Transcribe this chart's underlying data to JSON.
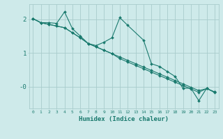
{
  "background_color": "#ceeaea",
  "grid_color": "#a8cccc",
  "line_color": "#1a7a6e",
  "marker_color": "#1a7a6e",
  "xlabel": "Humidex (Indice chaleur)",
  "x_ticks": [
    0,
    1,
    2,
    3,
    4,
    5,
    6,
    7,
    8,
    9,
    10,
    11,
    12,
    13,
    14,
    15,
    16,
    17,
    18,
    19,
    20,
    21,
    22,
    23
  ],
  "ylim": [
    -0.65,
    2.45
  ],
  "xlim": [
    -0.5,
    23.5
  ],
  "series1_x": [
    0,
    1,
    2,
    3,
    4,
    5,
    6,
    7,
    8,
    9,
    10,
    11,
    12,
    14,
    15,
    16,
    17,
    18,
    19,
    20,
    21,
    22,
    23
  ],
  "series1_y": [
    2.02,
    1.9,
    1.9,
    1.88,
    2.22,
    1.72,
    1.5,
    1.28,
    1.22,
    1.32,
    1.45,
    2.05,
    1.82,
    1.38,
    0.68,
    0.6,
    0.45,
    0.3,
    -0.05,
    -0.05,
    -0.42,
    -0.05,
    -0.18
  ],
  "series2_x": [
    0,
    1,
    2,
    3,
    4,
    5,
    6,
    7,
    8,
    9,
    10,
    11,
    12,
    13,
    14,
    15,
    16,
    17,
    18,
    19,
    20,
    21,
    22,
    23
  ],
  "series2_y": [
    2.02,
    1.9,
    1.85,
    1.8,
    1.75,
    1.6,
    1.45,
    1.28,
    1.18,
    1.08,
    0.98,
    0.88,
    0.78,
    0.68,
    0.58,
    0.48,
    0.38,
    0.28,
    0.18,
    0.08,
    -0.02,
    -0.12,
    -0.06,
    -0.16
  ],
  "series3_x": [
    0,
    1,
    2,
    3,
    4,
    5,
    6,
    7,
    8,
    9,
    10,
    11,
    12,
    13,
    14,
    15,
    16,
    17,
    18,
    19,
    20,
    21,
    22,
    23
  ],
  "series3_y": [
    2.02,
    1.9,
    1.85,
    1.8,
    1.75,
    1.6,
    1.45,
    1.28,
    1.18,
    1.08,
    0.98,
    0.83,
    0.73,
    0.63,
    0.53,
    0.43,
    0.33,
    0.23,
    0.13,
    0.03,
    -0.07,
    -0.17,
    -0.06,
    -0.16
  ]
}
